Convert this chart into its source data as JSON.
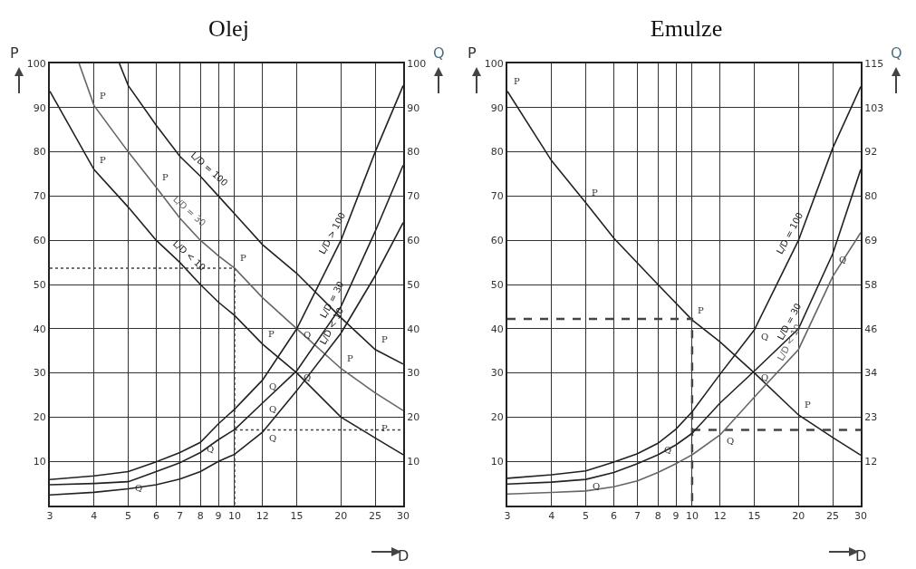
{
  "chart_data": [
    {
      "type": "line",
      "title": "Olej",
      "xlabel": "D",
      "ylabel": "P",
      "y2label": "Q",
      "log": "x",
      "grid": true,
      "xlim": [
        3,
        30
      ],
      "xticks": [
        3,
        4,
        5,
        6,
        7,
        8,
        9,
        10,
        12,
        15,
        20,
        25,
        30
      ],
      "ylim": [
        0,
        100
      ],
      "yticks": [
        10,
        20,
        30,
        40,
        50,
        60,
        70,
        80,
        90,
        100
      ],
      "y2lim": [
        0,
        100
      ],
      "y2ticks": [
        10,
        20,
        30,
        40,
        50,
        60,
        70,
        80,
        90,
        100
      ],
      "series": [
        {
          "name": "L/D < 10",
          "color": "#222222",
          "x": [
            3,
            4,
            5,
            6,
            7,
            8,
            9,
            10,
            12,
            15,
            20,
            25,
            30
          ],
          "values": [
            93.7,
            76,
            67.5,
            60,
            55,
            50,
            46,
            43,
            36.5,
            30,
            20,
            15.3,
            11.5
          ]
        },
        {
          "name": "L/D = 30",
          "color": "#666666",
          "x": [
            3.63,
            4,
            5,
            6,
            7,
            8,
            9,
            10,
            12,
            15,
            20,
            25,
            30
          ],
          "values": [
            100,
            90.5,
            80,
            72,
            65,
            60,
            56.5,
            53.7,
            47,
            40,
            31,
            25.5,
            21.5
          ]
        },
        {
          "name": "L/D = 100",
          "color": "#222222",
          "x": [
            4.72,
            5,
            6,
            7,
            8,
            9,
            10,
            12,
            15,
            20,
            25,
            30
          ],
          "values": [
            100,
            95,
            86,
            79,
            74.5,
            70,
            66,
            59,
            52.5,
            42.5,
            35.3,
            32
          ]
        },
        {
          "name": "L/D > 100",
          "color": "#222222",
          "axis": "y2",
          "x": [
            3,
            4,
            5,
            6,
            7,
            8,
            9,
            10,
            12,
            15,
            20,
            25,
            30
          ],
          "values": [
            5.9,
            6.7,
            7.7,
            9.9,
            12,
            14.3,
            18.5,
            21.8,
            28.4,
            40,
            60,
            80,
            95
          ]
        },
        {
          "name": "L/D = 30",
          "color": "#222222",
          "axis": "y2",
          "x": [
            3,
            4,
            5,
            6,
            7,
            8,
            9,
            10,
            12,
            15,
            20,
            25,
            30
          ],
          "values": [
            4.7,
            5,
            5.4,
            7.7,
            9.7,
            12,
            14.9,
            17.2,
            23.2,
            30.5,
            45,
            62,
            77
          ]
        },
        {
          "name": "L/D < 10",
          "color": "#222222",
          "axis": "y2",
          "x": [
            3,
            4,
            5,
            6,
            7,
            8,
            9,
            10,
            12,
            15,
            20,
            25,
            30
          ],
          "values": [
            2.4,
            3,
            3.8,
            4.7,
            6,
            7.7,
            10,
            11.6,
            16.6,
            26,
            39,
            52,
            64
          ]
        },
        {
          "color": "#444444",
          "line_style": "dotted",
          "x": [
            3,
            10,
            10
          ],
          "values": [
            53.7,
            53.7,
            0
          ]
        },
        {
          "color": "#444444",
          "line_style": "dotted",
          "x": [
            10,
            30
          ],
          "values": [
            17.1,
            17.1
          ]
        }
      ],
      "annotations": [
        {
          "text": "P",
          "x": 4,
          "y": 90.5
        },
        {
          "text": "P",
          "x": 4,
          "y": 76
        },
        {
          "text": "P",
          "x": 6,
          "y": 72
        },
        {
          "text": "P",
          "x": 10,
          "y": 53.7
        },
        {
          "text": "P",
          "x": 12,
          "y": 36.5
        },
        {
          "text": "P",
          "x": 25,
          "y": 35.3
        },
        {
          "text": "P",
          "x": 20,
          "y": 31
        },
        {
          "text": "P",
          "x": 25,
          "y": 15.3
        },
        {
          "text": "Q",
          "x": 5,
          "y": 5.4
        },
        {
          "text": "Q",
          "x": 8,
          "y": 14.3
        },
        {
          "text": "Q",
          "x": 12,
          "y": 23.2
        },
        {
          "text": "Q",
          "x": 12,
          "y": 28.4
        },
        {
          "text": "Q",
          "x": 15,
          "y": 30.5
        },
        {
          "text": "Q",
          "x": 15,
          "y": 40
        },
        {
          "text": "Q",
          "x": 12,
          "y": 16.6
        }
      ]
    },
    {
      "type": "line",
      "title": "Emulze",
      "xlabel": "D",
      "ylabel": "P",
      "y2label": "Q",
      "log": "x",
      "grid": true,
      "xlim": [
        3,
        30
      ],
      "xticks": [
        3,
        4,
        5,
        6,
        7,
        8,
        9,
        10,
        12,
        15,
        20,
        25,
        30
      ],
      "ylim": [
        0,
        100
      ],
      "yticks": [
        10,
        20,
        30,
        40,
        50,
        60,
        70,
        80,
        90,
        100
      ],
      "y2lim": [
        0,
        115
      ],
      "y2ticks": [
        {
          "value": 11.5,
          "label": "12"
        },
        {
          "value": 23,
          "label": "23"
        },
        {
          "value": 34.5,
          "label": "34"
        },
        {
          "value": 46,
          "label": "46"
        },
        {
          "value": 57.5,
          "label": "58"
        },
        {
          "value": 69,
          "label": "69"
        },
        {
          "value": 80.5,
          "label": "80"
        },
        {
          "value": 92,
          "label": "92"
        },
        {
          "value": 103.5,
          "label": "103"
        },
        {
          "value": 115,
          "label": "115"
        }
      ],
      "series": [
        {
          "color": "#222222",
          "x": [
            3,
            4,
            5,
            6,
            8,
            10,
            12,
            15,
            20,
            25,
            30
          ],
          "values": [
            93.7,
            78,
            68.5,
            60.5,
            50,
            42,
            37,
            30,
            20.5,
            15.4,
            11.4
          ]
        },
        {
          "name": "L/D = 100",
          "color": "#222222",
          "axis": "y2",
          "x": [
            3,
            4,
            5,
            6,
            7,
            8,
            9,
            10,
            12,
            15,
            20,
            25,
            30
          ],
          "values": [
            7.1,
            8,
            9,
            11.3,
            13.5,
            16.2,
            19.9,
            24.4,
            34.2,
            45.7,
            69,
            93,
            109
          ]
        },
        {
          "name": "L/D = 30",
          "color": "#222222",
          "axis": "y2",
          "x": [
            3,
            4,
            5,
            6,
            7,
            8,
            9,
            10,
            12,
            15,
            20,
            25,
            30
          ],
          "values": [
            5.6,
            6.1,
            6.8,
            8.6,
            10.9,
            13.2,
            15.8,
            18.8,
            26.7,
            35,
            46,
            65.5,
            87.4
          ]
        },
        {
          "name": "L/D < 10",
          "color": "#666666",
          "axis": "y2",
          "x": [
            3,
            4,
            5,
            6,
            7,
            8,
            9,
            10,
            12,
            15,
            20,
            25,
            30
          ],
          "values": [
            3,
            3.4,
            3.8,
            4.9,
            6.4,
            8.6,
            10.9,
            13.2,
            18.4,
            28.2,
            40.6,
            59.6,
            71
          ]
        },
        {
          "color": "#444444",
          "line_style": "dashed",
          "x": [
            3,
            10,
            10
          ],
          "values": [
            42.2,
            42.2,
            0
          ]
        },
        {
          "color": "#444444",
          "line_style": "dashed",
          "x": [
            10,
            30
          ],
          "values": [
            17.1,
            17.1
          ]
        }
      ],
      "annotations": [
        {
          "text": "P",
          "x": 3,
          "y": 93.7
        },
        {
          "text": "P",
          "x": 5,
          "y": 68.5
        },
        {
          "text": "P",
          "x": 10,
          "y": 42
        },
        {
          "text": "P",
          "x": 20,
          "y": 20.5
        },
        {
          "text": "Q",
          "x": 5,
          "y": 5.9
        },
        {
          "text": "Q",
          "x": 8,
          "y": 14.1
        },
        {
          "text": "Q",
          "x": 12,
          "y": 16
        },
        {
          "text": "Q",
          "x": 15,
          "y": 30.4
        },
        {
          "text": "Q",
          "x": 15,
          "y": 39.7
        },
        {
          "text": "Q",
          "x": 25,
          "y": 57
        }
      ]
    }
  ]
}
